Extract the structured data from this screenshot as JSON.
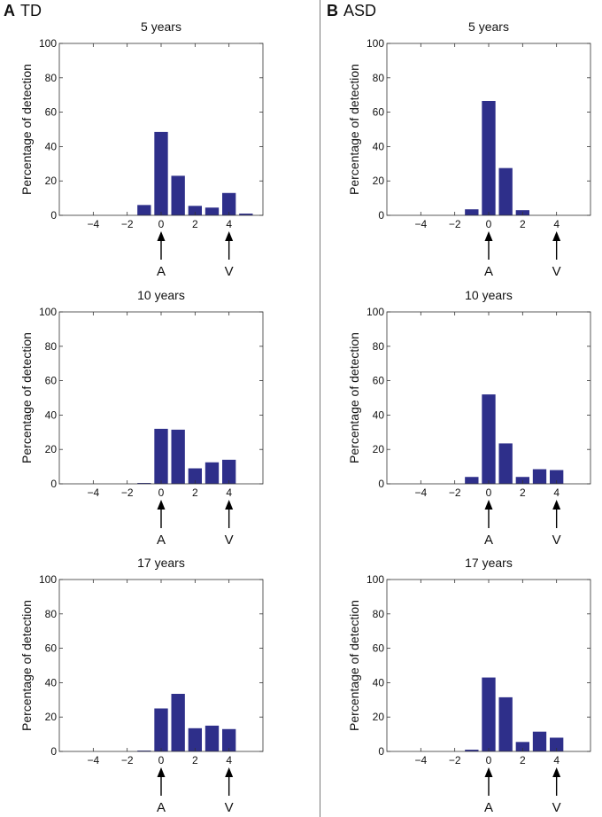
{
  "panels": [
    {
      "letter": "A",
      "group": "TD"
    },
    {
      "letter": "B",
      "group": "ASD"
    }
  ],
  "colors": {
    "bar": "#2e2f8a",
    "axis": "#333333",
    "divider": "#7a7a7a"
  },
  "chart_data": [
    {
      "type": "bar",
      "panel": "A",
      "title": "5 years",
      "ylabel": "Percentage of detection",
      "xlabel": "",
      "x": [
        -5,
        -4,
        -3,
        -2,
        -1,
        0,
        1,
        2,
        3,
        4,
        5
      ],
      "values": [
        0,
        0,
        0,
        0,
        6,
        48.5,
        23,
        5.5,
        4.5,
        13,
        1
      ],
      "ylim": [
        0,
        100
      ],
      "xlim": [
        -6,
        6
      ],
      "yticks": [
        0,
        20,
        40,
        60,
        80,
        100
      ],
      "xticks": [
        -4,
        -2,
        0,
        2,
        4
      ],
      "xtick_labels": [
        "−4",
        "−2",
        "0",
        "2",
        "4"
      ],
      "markers": [
        {
          "x": 0,
          "label": "A"
        },
        {
          "x": 4,
          "label": "V"
        }
      ]
    },
    {
      "type": "bar",
      "panel": "B",
      "title": "5 years",
      "ylabel": "Percentage of detection",
      "xlabel": "",
      "x": [
        -5,
        -4,
        -3,
        -2,
        -1,
        0,
        1,
        2,
        3,
        4,
        5
      ],
      "values": [
        0,
        0,
        0,
        0,
        3.5,
        66.5,
        27.5,
        3,
        0,
        0,
        0
      ],
      "ylim": [
        0,
        100
      ],
      "xlim": [
        -6,
        6
      ],
      "yticks": [
        0,
        20,
        40,
        60,
        80,
        100
      ],
      "xticks": [
        -4,
        -2,
        0,
        2,
        4
      ],
      "xtick_labels": [
        "−4",
        "−2",
        "0",
        "2",
        "4"
      ],
      "markers": [
        {
          "x": 0,
          "label": "A"
        },
        {
          "x": 4,
          "label": "V"
        }
      ]
    },
    {
      "type": "bar",
      "panel": "A",
      "title": "10 years",
      "ylabel": "Percentage of detection",
      "xlabel": "",
      "x": [
        -5,
        -4,
        -3,
        -2,
        -1,
        0,
        1,
        2,
        3,
        4,
        5
      ],
      "values": [
        0,
        0,
        0,
        0,
        0.5,
        32,
        31.5,
        9,
        12.5,
        14,
        0
      ],
      "ylim": [
        0,
        100
      ],
      "xlim": [
        -6,
        6
      ],
      "yticks": [
        0,
        20,
        40,
        60,
        80,
        100
      ],
      "xticks": [
        -4,
        -2,
        0,
        2,
        4
      ],
      "xtick_labels": [
        "−4",
        "−2",
        "0",
        "2",
        "4"
      ],
      "markers": [
        {
          "x": 0,
          "label": "A"
        },
        {
          "x": 4,
          "label": "V"
        }
      ]
    },
    {
      "type": "bar",
      "panel": "B",
      "title": "10 years",
      "ylabel": "Percentage of detection",
      "xlabel": "",
      "x": [
        -5,
        -4,
        -3,
        -2,
        -1,
        0,
        1,
        2,
        3,
        4,
        5
      ],
      "values": [
        0,
        0,
        0,
        0,
        4,
        52,
        23.5,
        4,
        8.5,
        8,
        0
      ],
      "ylim": [
        0,
        100
      ],
      "xlim": [
        -6,
        6
      ],
      "yticks": [
        0,
        20,
        40,
        60,
        80,
        100
      ],
      "xticks": [
        -4,
        -2,
        0,
        2,
        4
      ],
      "xtick_labels": [
        "−4",
        "−2",
        "0",
        "2",
        "4"
      ],
      "markers": [
        {
          "x": 0,
          "label": "A"
        },
        {
          "x": 4,
          "label": "V"
        }
      ]
    },
    {
      "type": "bar",
      "panel": "A",
      "title": "17 years",
      "ylabel": "Percentage of detection",
      "xlabel": "",
      "x": [
        -5,
        -4,
        -3,
        -2,
        -1,
        0,
        1,
        2,
        3,
        4,
        5
      ],
      "values": [
        0,
        0,
        0,
        0,
        0.5,
        25,
        33.5,
        13.5,
        15,
        13,
        0
      ],
      "ylim": [
        0,
        100
      ],
      "xlim": [
        -6,
        6
      ],
      "yticks": [
        0,
        20,
        40,
        60,
        80,
        100
      ],
      "xticks": [
        -4,
        -2,
        0,
        2,
        4
      ],
      "xtick_labels": [
        "−4",
        "−2",
        "0",
        "2",
        "4"
      ],
      "markers": [
        {
          "x": 0,
          "label": "A"
        },
        {
          "x": 4,
          "label": "V"
        }
      ]
    },
    {
      "type": "bar",
      "panel": "B",
      "title": "17 years",
      "ylabel": "Percentage of detection",
      "xlabel": "",
      "x": [
        -5,
        -4,
        -3,
        -2,
        -1,
        0,
        1,
        2,
        3,
        4,
        5
      ],
      "values": [
        0,
        0,
        0,
        0,
        1,
        43,
        31.5,
        5.5,
        11.5,
        8,
        0
      ],
      "ylim": [
        0,
        100
      ],
      "xlim": [
        -6,
        6
      ],
      "yticks": [
        0,
        20,
        40,
        60,
        80,
        100
      ],
      "xticks": [
        -4,
        -2,
        0,
        2,
        4
      ],
      "xtick_labels": [
        "−4",
        "−2",
        "0",
        "2",
        "4"
      ],
      "markers": [
        {
          "x": 0,
          "label": "A"
        },
        {
          "x": 4,
          "label": "V"
        }
      ]
    }
  ]
}
